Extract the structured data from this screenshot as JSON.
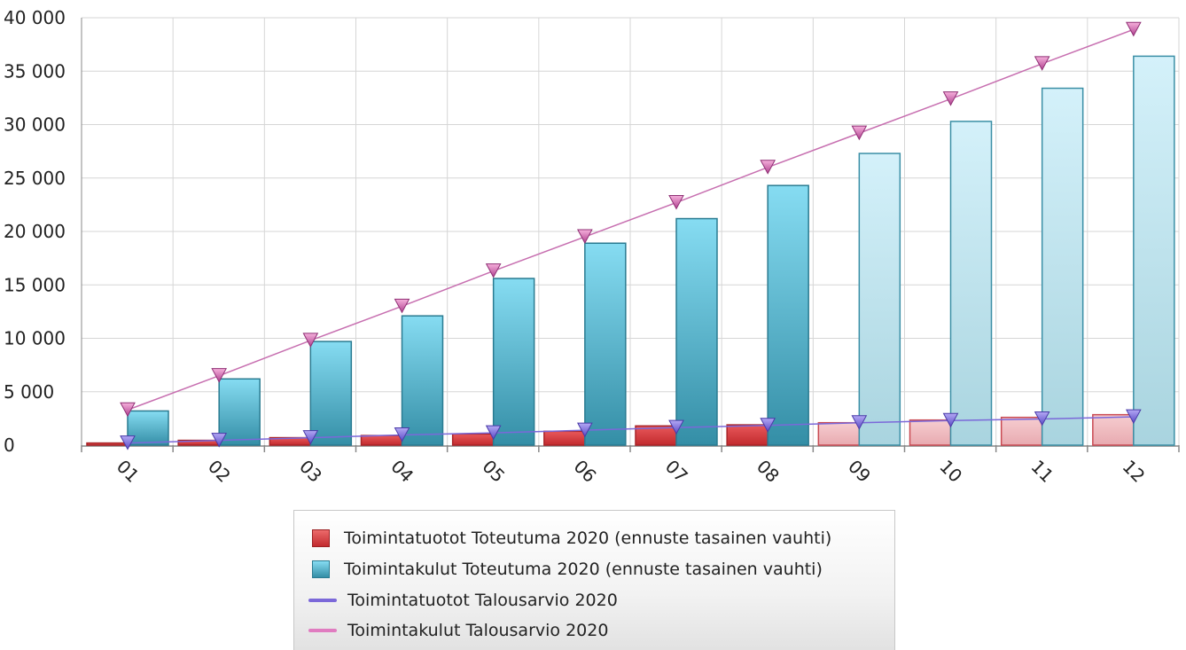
{
  "chart_data": {
    "type": "bar",
    "categories": [
      "01",
      "02",
      "03",
      "04",
      "05",
      "06",
      "07",
      "08",
      "09",
      "10",
      "11",
      "12"
    ],
    "ylim": [
      0,
      40000
    ],
    "yticks": [
      0,
      5000,
      10000,
      15000,
      20000,
      25000,
      30000,
      35000,
      40000
    ],
    "ytick_labels": [
      "0",
      "5 000",
      "10 000",
      "15 000",
      "20 000",
      "25 000",
      "30 000",
      "35 000",
      "40 000"
    ],
    "grid": true,
    "legend_position": "bottom",
    "forecast_from_index": 8,
    "series": [
      {
        "name": "Toimintatuotot Toteutuma 2020 (ennuste tasainen vauhti)",
        "type": "bar",
        "color": "#d9534f",
        "forecast_color": "#f2c4c4",
        "values": [
          200,
          450,
          700,
          900,
          1050,
          1300,
          1800,
          1900,
          2100,
          2350,
          2600,
          2850
        ]
      },
      {
        "name": "Toimintakulut Toteutuma 2020 (ennuste tasainen vauhti)",
        "type": "bar",
        "color": "#5bc0de",
        "forecast_color": "#c8e8f2",
        "values": [
          3200,
          6200,
          9700,
          12100,
          15600,
          18900,
          21200,
          24300,
          27300,
          30300,
          33400,
          36400
        ]
      },
      {
        "name": "Toimintatuotot Talousarvio 2020",
        "type": "line",
        "color": "#7b68d9",
        "values": [
          200,
          450,
          700,
          950,
          1150,
          1400,
          1650,
          1850,
          2100,
          2300,
          2450,
          2650
        ]
      },
      {
        "name": "Toimintakulut Talousarvio 2020",
        "type": "line",
        "color": "#e07cc0",
        "values": [
          3300,
          6500,
          9800,
          13000,
          16300,
          19500,
          22700,
          26000,
          29200,
          32400,
          35700,
          38900
        ]
      }
    ]
  }
}
